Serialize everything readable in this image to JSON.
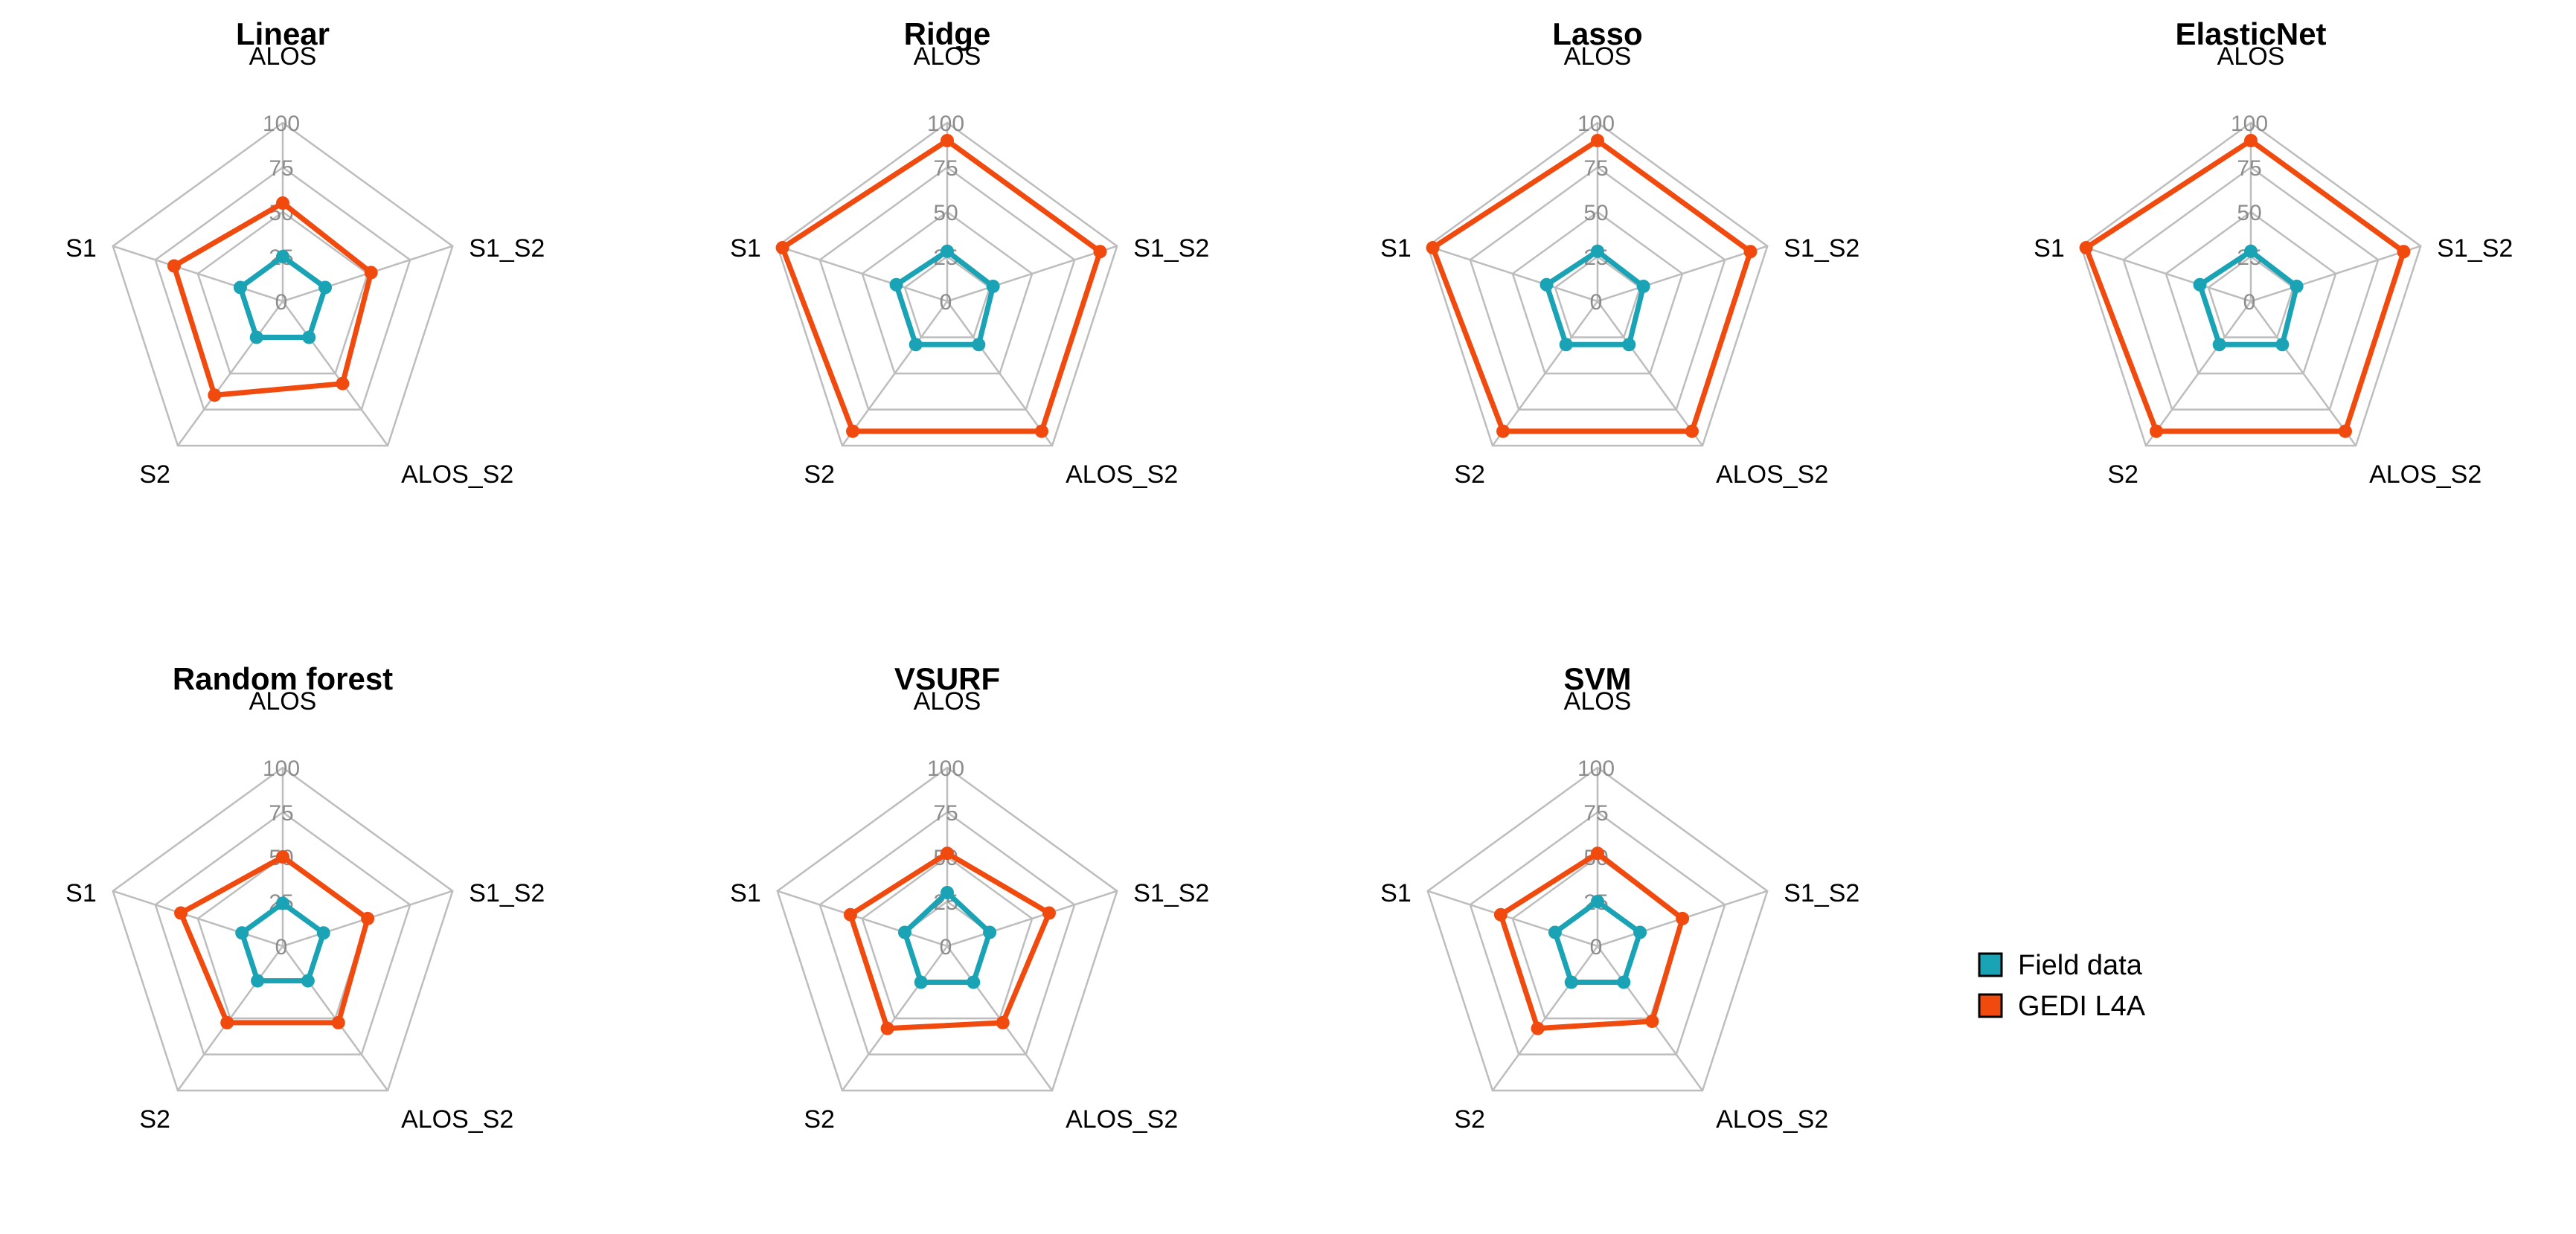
{
  "chart_data": {
    "type": "radar",
    "axes": [
      "ALOS",
      "S1_S2",
      "ALOS_S2",
      "S2",
      "S1"
    ],
    "ticks": [
      "0",
      "25",
      "50",
      "75",
      "100"
    ],
    "range": [
      0,
      100
    ],
    "legend": {
      "position": "right",
      "entries": [
        {
          "name": "Field data",
          "color": "#1aa3b5"
        },
        {
          "name": "GEDI L4A",
          "color": "#f04a0f"
        }
      ]
    },
    "panels": [
      {
        "title": "Linear",
        "series": [
          {
            "name": "Field data",
            "values": [
              25,
              25,
              25,
              25,
              25
            ]
          },
          {
            "name": "GEDI L4A",
            "values": [
              55,
              52,
              57,
              65,
              64
            ]
          }
        ]
      },
      {
        "title": "Ridge",
        "series": [
          {
            "name": "Field data",
            "values": [
              28,
              27,
              30,
              30,
              30
            ]
          },
          {
            "name": "GEDI L4A",
            "values": [
              90,
              90,
              90,
              90,
              97
            ]
          }
        ]
      },
      {
        "title": "Lasso",
        "series": [
          {
            "name": "Field data",
            "values": [
              28,
              27,
              30,
              30,
              30
            ]
          },
          {
            "name": "GEDI L4A",
            "values": [
              90,
              90,
              90,
              90,
              97
            ]
          }
        ]
      },
      {
        "title": "ElasticNet",
        "series": [
          {
            "name": "Field data",
            "values": [
              28,
              27,
              30,
              30,
              30
            ]
          },
          {
            "name": "GEDI L4A",
            "values": [
              90,
              90,
              90,
              90,
              97
            ]
          }
        ]
      },
      {
        "title": "Random forest",
        "series": [
          {
            "name": "Field data",
            "values": [
              24,
              24,
              24,
              24,
              24
            ]
          },
          {
            "name": "GEDI L4A",
            "values": [
              50,
              50,
              53,
              53,
              60
            ]
          }
        ]
      },
      {
        "title": "VSURF",
        "series": [
          {
            "name": "Field data",
            "values": [
              30,
              25,
              25,
              25,
              25
            ]
          },
          {
            "name": "GEDI L4A",
            "values": [
              52,
              60,
              53,
              57,
              57
            ]
          }
        ]
      },
      {
        "title": "SVM",
        "series": [
          {
            "name": "Field data",
            "values": [
              25,
              25,
              25,
              25,
              25
            ]
          },
          {
            "name": "GEDI L4A",
            "values": [
              52,
              50,
              52,
              57,
              57
            ]
          }
        ]
      }
    ]
  }
}
